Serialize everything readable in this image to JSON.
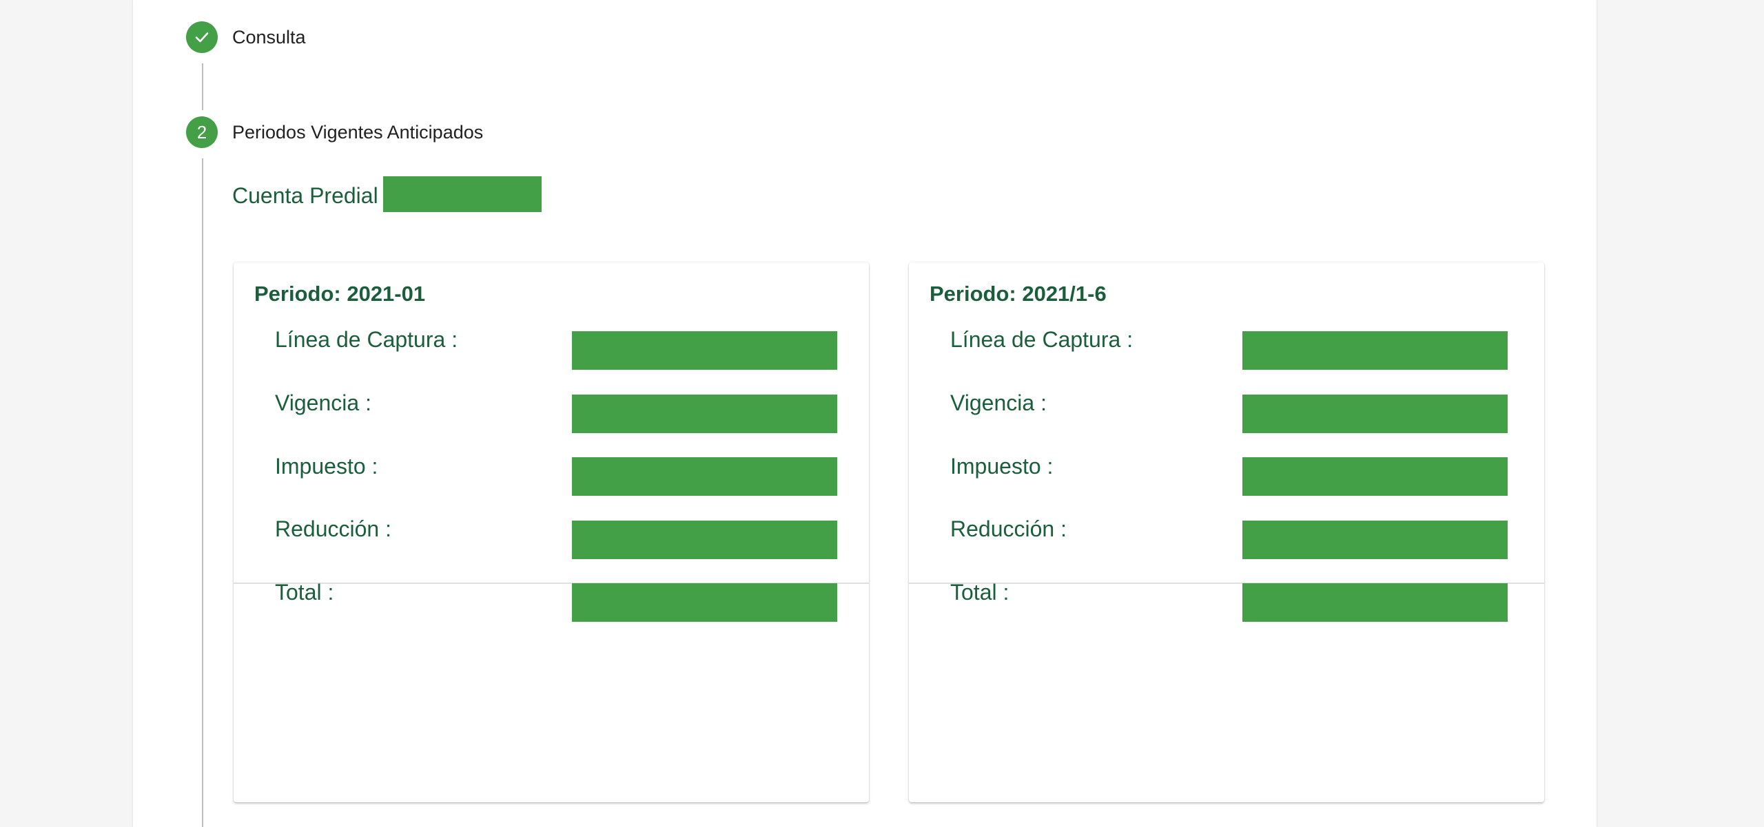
{
  "stepper": {
    "steps": [
      {
        "number": "✓",
        "label": "Consulta",
        "state": "complete"
      },
      {
        "number": "2",
        "label": "Periodos Vigentes Anticipados",
        "state": "active"
      }
    ]
  },
  "cuenta": {
    "label": "Cuenta Predial :",
    "value_redacted": true
  },
  "cards": [
    {
      "title": "Periodo: 2021-01",
      "rows": [
        {
          "label": "Línea de Captura :"
        },
        {
          "label": "Vigencia :"
        },
        {
          "label": "Impuesto :"
        },
        {
          "label": "Reducción :"
        },
        {
          "label": "Total :"
        }
      ]
    },
    {
      "title": "Periodo: 2021/1-6",
      "rows": [
        {
          "label": "Línea de Captura :"
        },
        {
          "label": "Vigencia :"
        },
        {
          "label": "Impuesto :"
        },
        {
          "label": "Reducción :"
        },
        {
          "label": "Total :"
        }
      ]
    }
  ],
  "colors": {
    "accent": "#43a047",
    "text_green": "#1b5e3b",
    "step_text": "#212121"
  }
}
